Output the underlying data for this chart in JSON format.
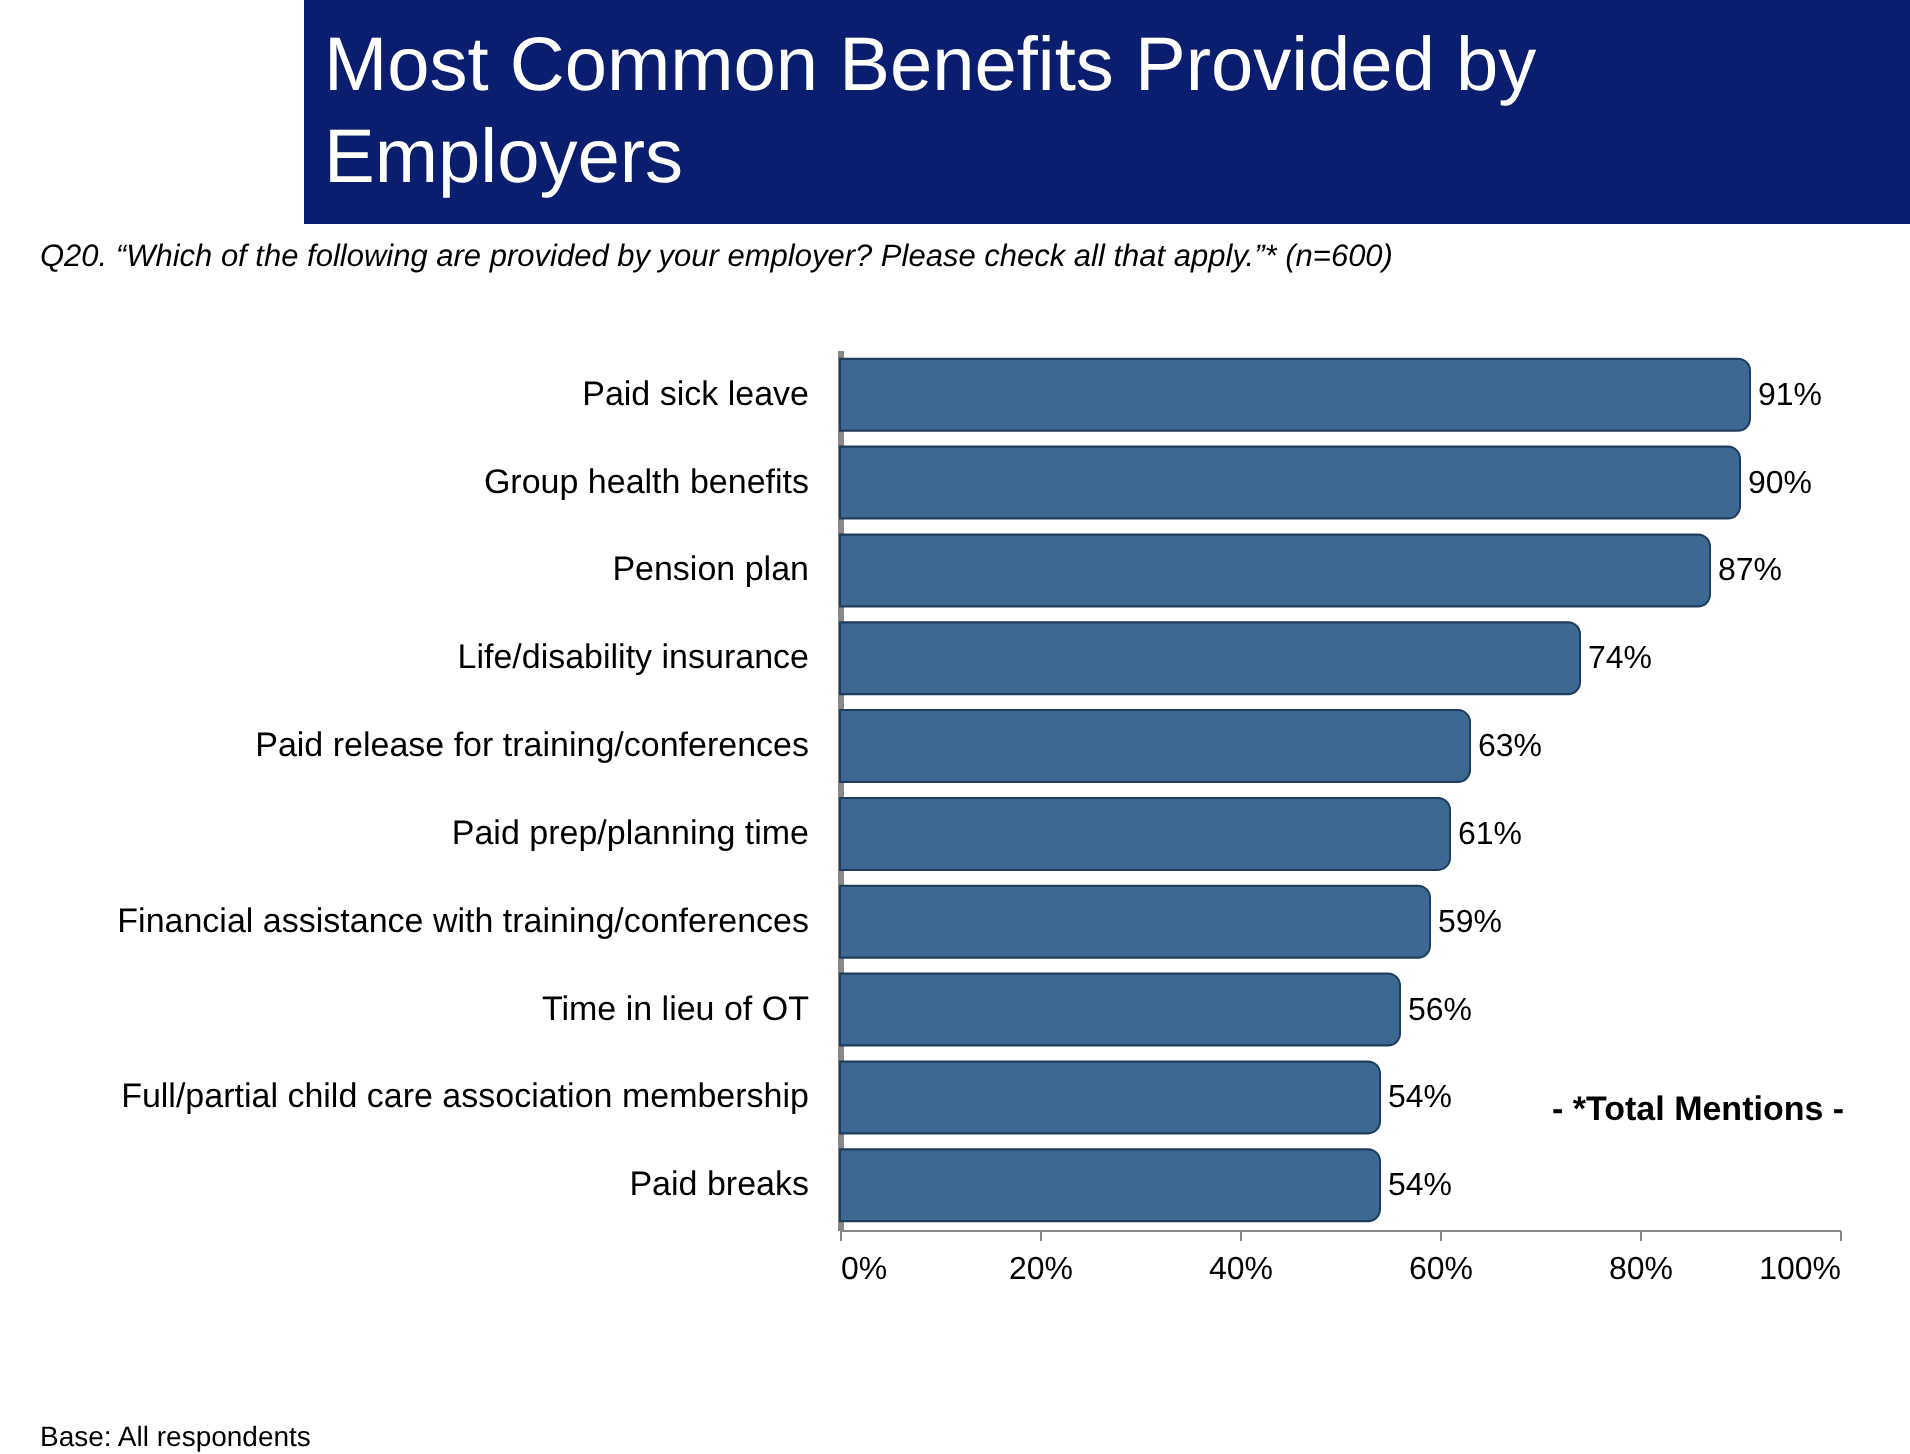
{
  "chart_data": {
    "type": "bar",
    "orientation": "horizontal",
    "title": "Most Common Benefits Provided by Employers",
    "subtitle": "Q20. “Which of the following are provided by your employer? Please check all that apply.”* (n=600)",
    "categories": [
      "Paid sick leave",
      "Group health benefits",
      "Pension plan",
      "Life/disability insurance",
      "Paid release for training/conferences",
      "Paid prep/planning time",
      "Financial assistance with training/conferences",
      "Time in lieu of OT",
      "Full/partial child care association membership",
      "Paid breaks"
    ],
    "values": [
      91,
      90,
      87,
      74,
      63,
      61,
      59,
      56,
      54,
      54
    ],
    "value_labels": [
      "91%",
      "90%",
      "87%",
      "74%",
      "63%",
      "61%",
      "59%",
      "56%",
      "54%",
      "54%"
    ],
    "color": "#3d6891",
    "xlim": [
      0,
      100
    ],
    "xticks": [
      {
        "value": 0,
        "label": "0%"
      },
      {
        "value": 20,
        "label": "20%"
      },
      {
        "value": 40,
        "label": "40%"
      },
      {
        "value": 60,
        "label": "60%"
      },
      {
        "value": 80,
        "label": "80%"
      },
      {
        "value": 100,
        "label": "100%"
      }
    ],
    "annotations": [
      "- *Total Mentions -",
      "Base: All respondents"
    ]
  }
}
